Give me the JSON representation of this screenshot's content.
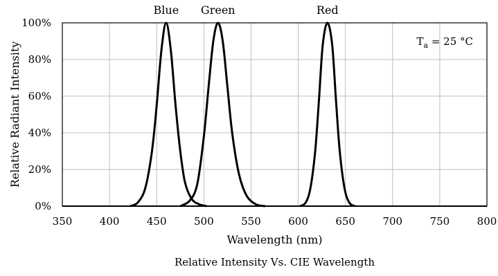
{
  "chart_data": {
    "type": "line",
    "title": "",
    "caption": "Relative Intensity Vs. CIE Wavelength",
    "xlabel": "Wavelength (nm)",
    "ylabel": "Relative Radiant Intensity",
    "xlim": [
      350,
      800
    ],
    "ylim": [
      0,
      100
    ],
    "x_ticks": [
      350,
      400,
      450,
      500,
      550,
      600,
      650,
      700,
      750,
      800
    ],
    "x_tick_labels": [
      "350",
      "400",
      "450",
      "500",
      "550",
      "600",
      "650",
      "700",
      "750",
      "800"
    ],
    "y_ticks": [
      0,
      20,
      40,
      60,
      80,
      100
    ],
    "y_tick_labels": [
      "0%",
      "20%",
      "40%",
      "60%",
      "80%",
      "100%"
    ],
    "grid": true,
    "line_color": "#000000",
    "annotation": {
      "main": "T",
      "subscript": "a",
      "value": " = 25 °C"
    },
    "series": [
      {
        "label": "Blue",
        "x": [
          422,
          430,
          438,
          445,
          450,
          455,
          460,
          465,
          470,
          475,
          480,
          487,
          495,
          503
        ],
        "y": [
          0,
          2,
          10,
          30,
          55,
          85,
          100,
          85,
          55,
          30,
          13,
          4,
          1,
          0
        ]
      },
      {
        "label": "Green",
        "x": [
          475,
          485,
          493,
          500,
          505,
          510,
          515,
          520,
          525,
          530,
          537,
          545,
          555,
          565
        ],
        "y": [
          0,
          3,
          12,
          38,
          65,
          90,
          100,
          90,
          65,
          40,
          18,
          6,
          1,
          0
        ]
      },
      {
        "label": "Red",
        "x": [
          602,
          608,
          613,
          618,
          622,
          626,
          631,
          636,
          640,
          644,
          649,
          654,
          660
        ],
        "y": [
          0,
          2,
          10,
          30,
          58,
          88,
          100,
          88,
          58,
          30,
          10,
          2,
          0
        ]
      }
    ]
  }
}
